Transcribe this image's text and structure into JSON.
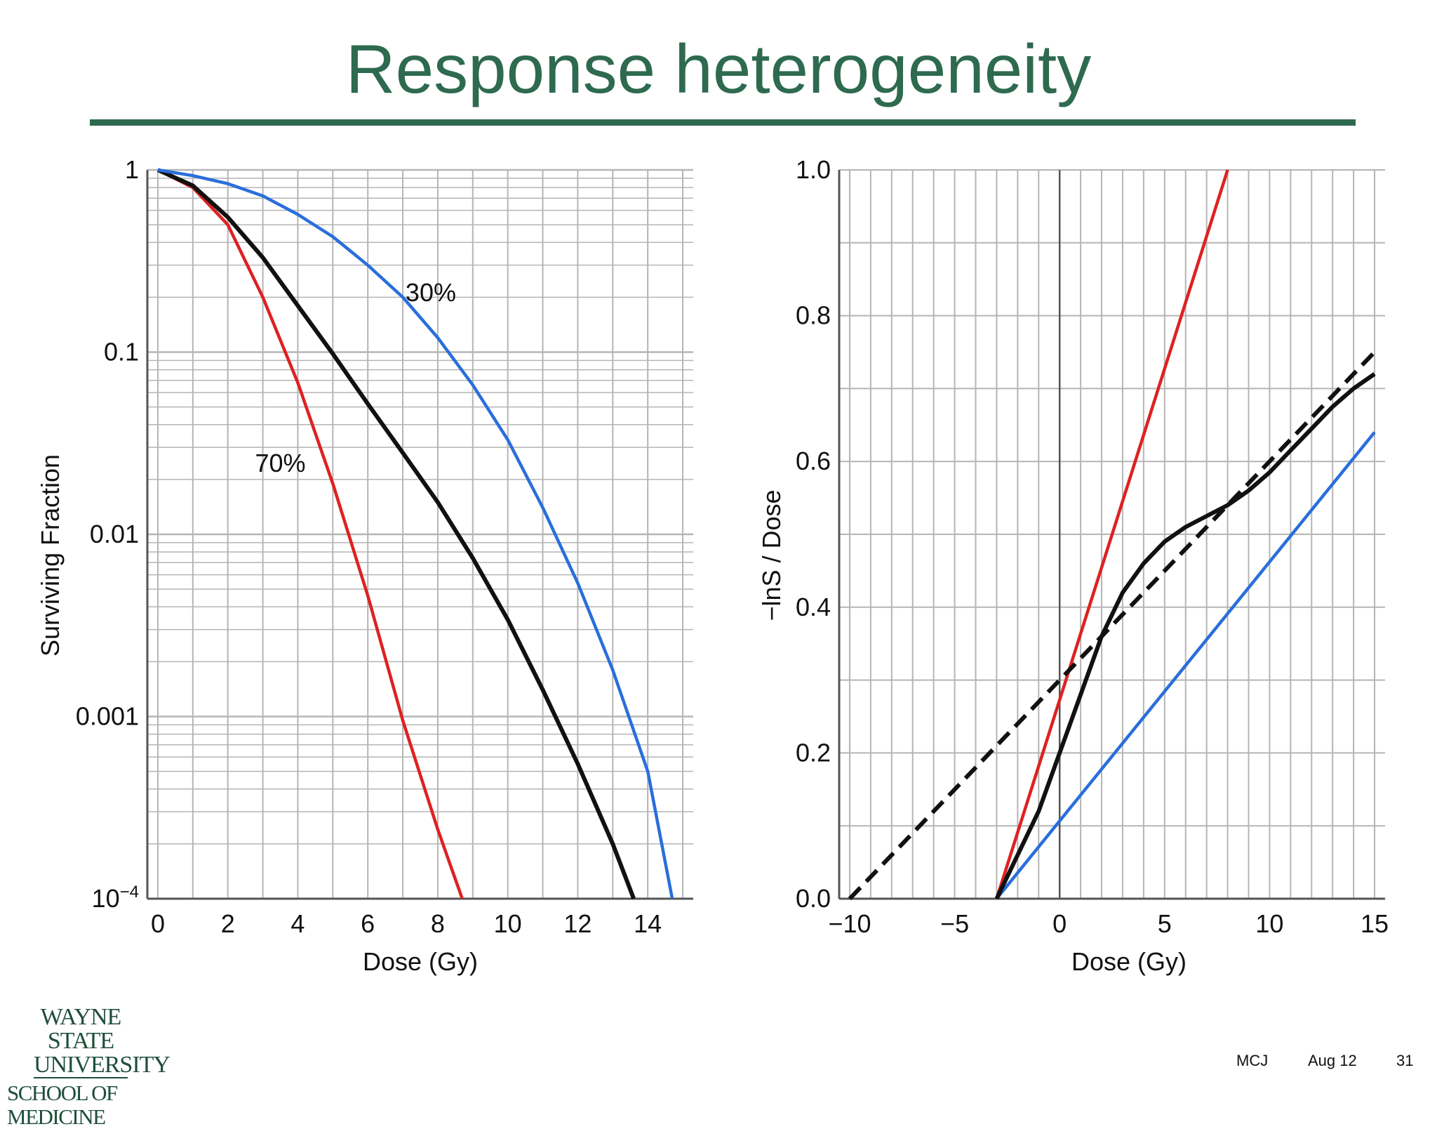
{
  "slide": {
    "title": "Response heterogeneity"
  },
  "footer": {
    "author": "MCJ",
    "date": "Aug 12",
    "page": "31"
  },
  "logo": {
    "line1": "WAYNE STATE",
    "line2": "UNIVERSITY",
    "line3": "SCHOOL OF MEDICINE"
  },
  "colors": {
    "title": "#2e6a4f",
    "red": "#dd2222",
    "blue": "#2a6edb",
    "black": "#111111",
    "grid": "#b5b5b5"
  },
  "chart_data": [
    {
      "type": "line",
      "xlabel": "Dose  (Gy)",
      "ylabel": "Surviving Fraction",
      "xlim": [
        -0.3,
        15.3
      ],
      "ylim": [
        0.0001,
        1
      ],
      "yscale": "log",
      "grid": true,
      "x_ticks": [
        "0",
        "2",
        "4",
        "6",
        "8",
        "10",
        "12",
        "14"
      ],
      "y_ticks": [
        "1",
        "0.1",
        "0.01",
        "0.001",
        "10^-4"
      ],
      "annotations": [
        {
          "text": "30%",
          "color": "#2a6edb",
          "x": 7.8,
          "y": 0.19
        },
        {
          "text": "70%",
          "color": "#dd2222",
          "x": 3.5,
          "y": 0.022
        }
      ],
      "series": [
        {
          "color": "#dd2222",
          "x": [
            0,
            1,
            2,
            3,
            4,
            5,
            6,
            7,
            8,
            8.7
          ],
          "y": [
            1,
            0.8,
            0.5,
            0.2,
            0.068,
            0.019,
            0.0046,
            0.00095,
            0.00024,
            0.0001
          ]
        },
        {
          "color": "#111111",
          "x": [
            0,
            1,
            2,
            3,
            4,
            5,
            6,
            7,
            8,
            9,
            10,
            11,
            12,
            13,
            13.6
          ],
          "y": [
            1,
            0.82,
            0.55,
            0.33,
            0.18,
            0.098,
            0.052,
            0.028,
            0.015,
            0.0074,
            0.0034,
            0.0014,
            0.00055,
            0.0002,
            0.0001
          ]
        },
        {
          "color": "#2a6edb",
          "x": [
            0,
            1,
            2,
            3,
            4,
            5,
            6,
            7,
            8,
            9,
            10,
            11,
            12,
            13,
            14,
            14.7
          ],
          "y": [
            1,
            0.93,
            0.84,
            0.72,
            0.57,
            0.43,
            0.3,
            0.2,
            0.12,
            0.066,
            0.033,
            0.014,
            0.0054,
            0.0018,
            0.0005,
            0.0001
          ]
        }
      ]
    },
    {
      "type": "line",
      "xlabel": "Dose  (Gy)",
      "ylabel": "−lnS / Dose",
      "xlim": [
        -10.5,
        15.5
      ],
      "ylim": [
        0,
        1.0
      ],
      "grid": true,
      "x_ticks": [
        "−10",
        "−5",
        "0",
        "5",
        "10",
        "15"
      ],
      "y_ticks": [
        "0.0",
        "0.2",
        "0.4",
        "0.6",
        "0.8",
        "1.0"
      ],
      "series": [
        {
          "color": "#dd2222",
          "style": "solid",
          "x": [
            -3,
            8
          ],
          "y": [
            0,
            1.0
          ]
        },
        {
          "color": "#2a6edb",
          "style": "solid",
          "x": [
            -3,
            15
          ],
          "y": [
            0,
            0.64
          ]
        },
        {
          "color": "#111111",
          "style": "dashed",
          "x": [
            -10,
            15
          ],
          "y": [
            0,
            0.75
          ]
        },
        {
          "color": "#111111",
          "style": "solid",
          "x": [
            -3,
            -1,
            0,
            1,
            2,
            3,
            4,
            5,
            6,
            7,
            8,
            9,
            10,
            11,
            12,
            13,
            14,
            15
          ],
          "y": [
            0,
            0.12,
            0.2,
            0.28,
            0.36,
            0.42,
            0.46,
            0.49,
            0.51,
            0.525,
            0.54,
            0.56,
            0.585,
            0.615,
            0.645,
            0.675,
            0.7,
            0.72
          ]
        }
      ]
    }
  ]
}
